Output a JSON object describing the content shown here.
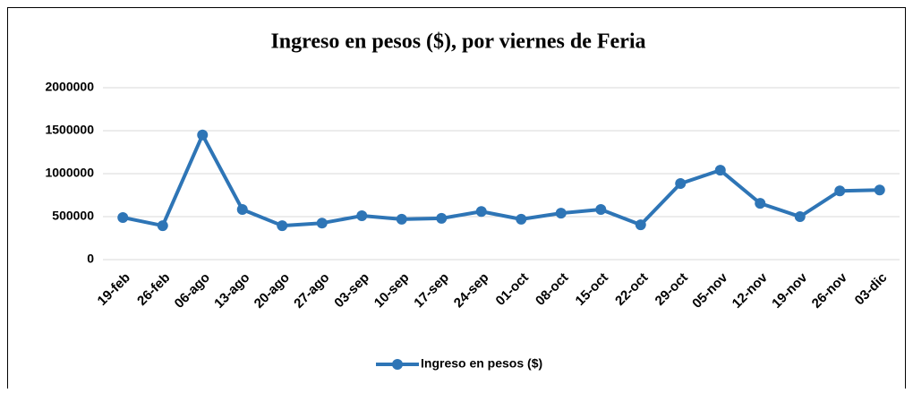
{
  "chart_data": {
    "type": "line",
    "title": "Ingreso en pesos ($), por viernes de Feria",
    "categories": [
      "19-feb",
      "26-feb",
      "06-ago",
      "13-ago",
      "20-ago",
      "27-ago",
      "03-sep",
      "10-sep",
      "17-sep",
      "24-sep",
      "01-oct",
      "08-oct",
      "15-oct",
      "22-oct",
      "29-oct",
      "05-nov",
      "12-nov",
      "19-nov",
      "26-nov",
      "03-dic"
    ],
    "series": [
      {
        "name": "Ingreso en pesos ($)",
        "color": "#2e75b6",
        "values": [
          490000,
          395000,
          1450000,
          583000,
          395000,
          425000,
          510000,
          470000,
          480000,
          560000,
          470000,
          540000,
          583000,
          405000,
          885000,
          1040000,
          655000,
          500000,
          800000,
          810000
        ]
      }
    ],
    "ylim": [
      0,
      2000000
    ],
    "yticks": [
      0,
      500000,
      1000000,
      1500000,
      2000000
    ],
    "grid": true,
    "legend": "bottom"
  }
}
